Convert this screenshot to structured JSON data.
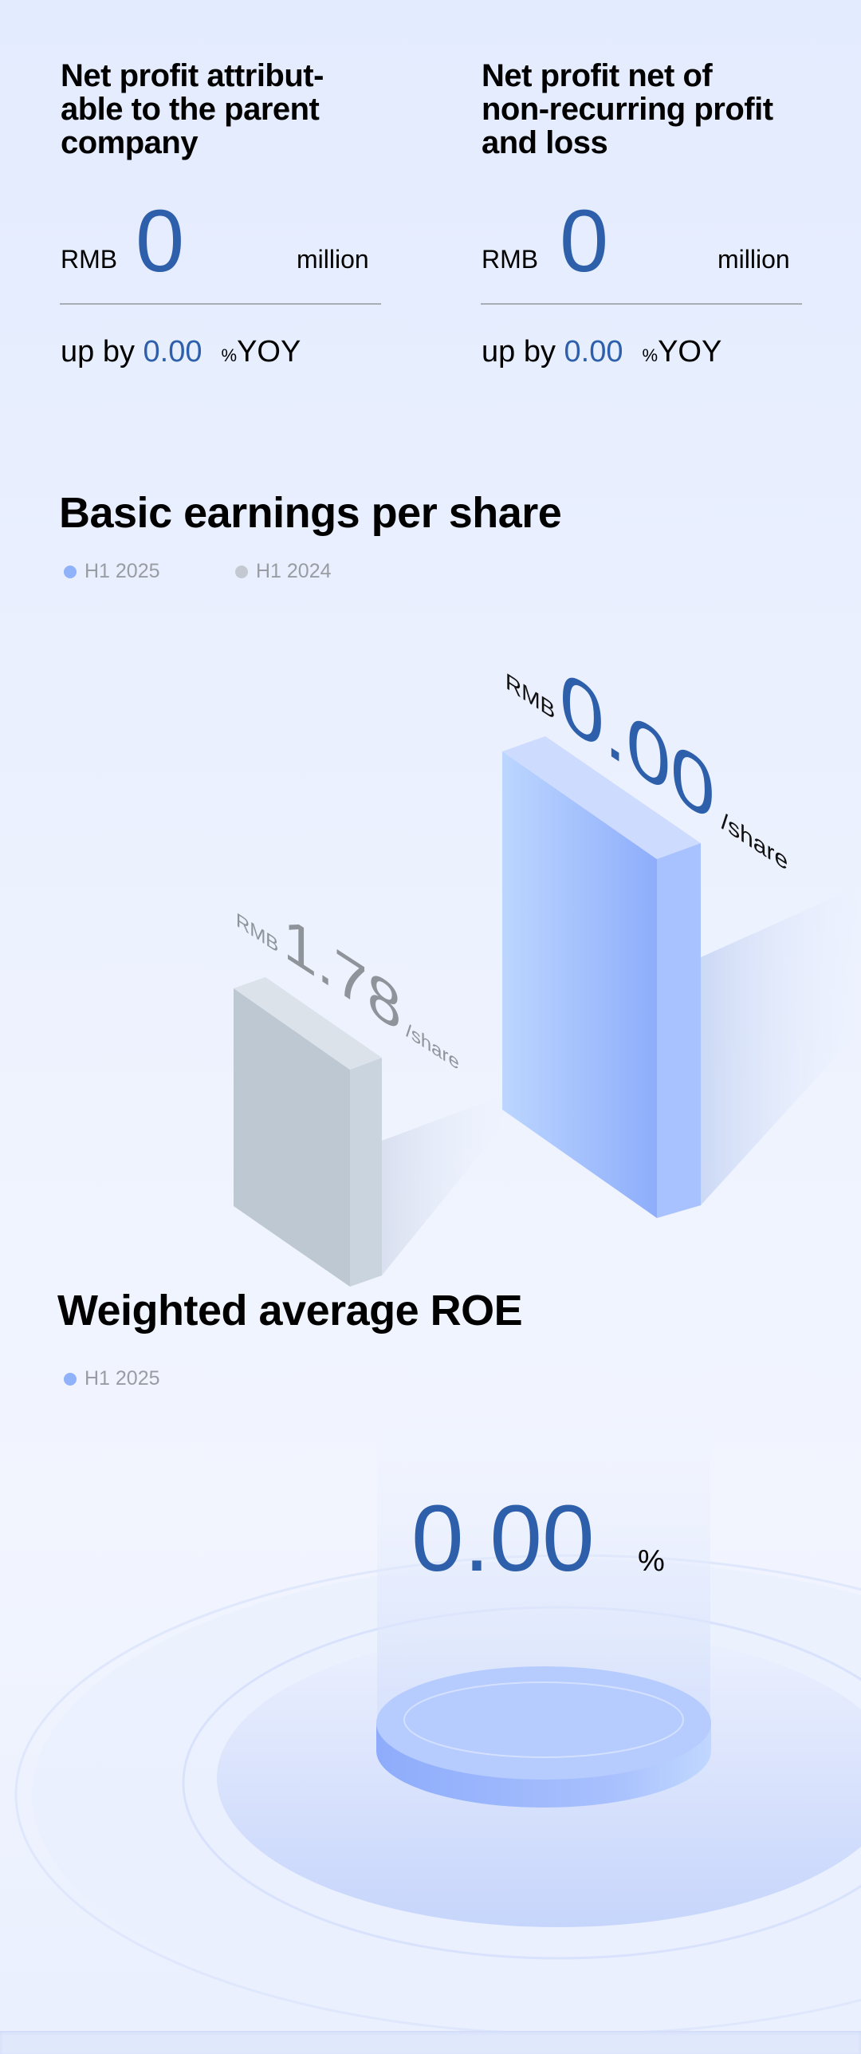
{
  "cards": [
    {
      "title": "Net profit attribut-able to the parent company",
      "title_lines": [
        "Net profit attribut-",
        "able to the parent",
        "company"
      ],
      "currency": "RMB",
      "value": "0",
      "unit": "million",
      "yoy_prefix": "up by",
      "yoy_value": "0.00",
      "yoy_pct": "%",
      "yoy_suffix": "YOY"
    },
    {
      "title": "Net profit net of non-recurring profit and loss",
      "title_lines": [
        "Net profit net of",
        "non-recurring profit",
        "and loss"
      ],
      "currency": "RMB",
      "value": "0",
      "unit": "million",
      "yoy_prefix": "up by",
      "yoy_value": "0.00",
      "yoy_pct": "%",
      "yoy_suffix": "YOY"
    }
  ],
  "eps": {
    "title": "Basic earnings per share",
    "legend": [
      {
        "label": "H1 2025",
        "color": "#8fb2fb"
      },
      {
        "label": "H1 2024",
        "color": "#c4c9d1"
      }
    ]
  },
  "roe": {
    "title": "Weighted average ROE",
    "legend": [
      {
        "label": "H1 2025",
        "color": "#8fb2fb"
      }
    ],
    "value": "0.00",
    "unit": "%"
  },
  "chart_data": [
    {
      "type": "bar",
      "title": "Basic earnings per share",
      "categories": [
        "H1 2024",
        "H1 2025"
      ],
      "series": [
        {
          "values": [
            1.78,
            0.0
          ]
        }
      ],
      "labels": [
        {
          "currency": "RMB",
          "value": "1.78",
          "unit": "/share"
        },
        {
          "currency": "RMB",
          "value": "0.00",
          "unit": "/share"
        }
      ]
    }
  ],
  "colors": {
    "accent": "#2e5faa",
    "legend_text": "#9a9ca3",
    "bar_2025": "#9bb7fd",
    "bar_2024": "#bec8d3"
  }
}
